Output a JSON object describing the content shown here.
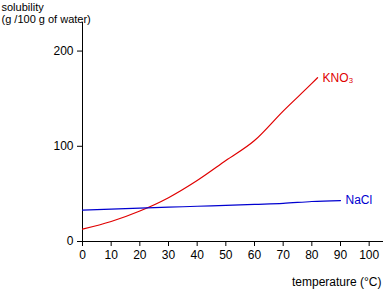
{
  "chart_data": {
    "type": "line",
    "x_label": "temperature (°C)",
    "y_label": "solubility\n(g /100 g of water)",
    "xlim": [
      0,
      105
    ],
    "ylim": [
      0,
      230
    ],
    "xticks": [
      0,
      10,
      20,
      30,
      40,
      50,
      60,
      70,
      80,
      90,
      100
    ],
    "yticks": [
      0,
      100,
      200
    ],
    "grid": false,
    "series": [
      {
        "name": "KNO₃",
        "color": "#e00000",
        "x": [
          0,
          10,
          20,
          30,
          40,
          50,
          60,
          70,
          80,
          82
        ],
        "values": [
          13,
          21,
          32,
          46,
          64,
          85,
          106,
          137,
          166,
          172
        ]
      },
      {
        "name": "NaCl",
        "color": "#0000d0",
        "x": [
          0,
          10,
          20,
          30,
          40,
          50,
          60,
          70,
          80,
          90
        ],
        "values": [
          33,
          34,
          35,
          36,
          37,
          38,
          39,
          40,
          42,
          43
        ]
      }
    ]
  }
}
